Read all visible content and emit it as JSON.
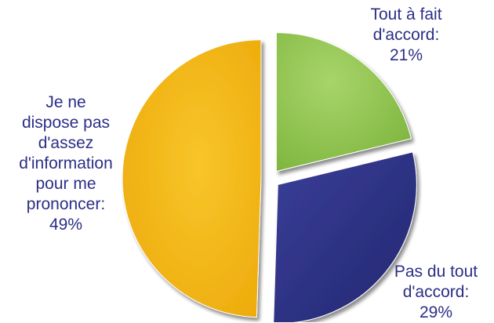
{
  "chart_data": {
    "type": "pie",
    "title": "",
    "slices": [
      {
        "label_lines": [
          "Tout à fait",
          "d'accord:",
          "21%"
        ],
        "value": 21,
        "color": "#92c64e"
      },
      {
        "label_lines": [
          "Pas du tout",
          "d'accord:",
          "29%"
        ],
        "value": 29,
        "color": "#2b2f86"
      },
      {
        "label_lines": [
          "Je ne",
          "dispose pas",
          "d'assez",
          "d'information",
          "pour me",
          "prononcer:",
          "49%"
        ],
        "value": 49,
        "color": "#f5b90e"
      }
    ],
    "start_angle_deg": 0,
    "direction": "clockwise",
    "exploded": true
  }
}
